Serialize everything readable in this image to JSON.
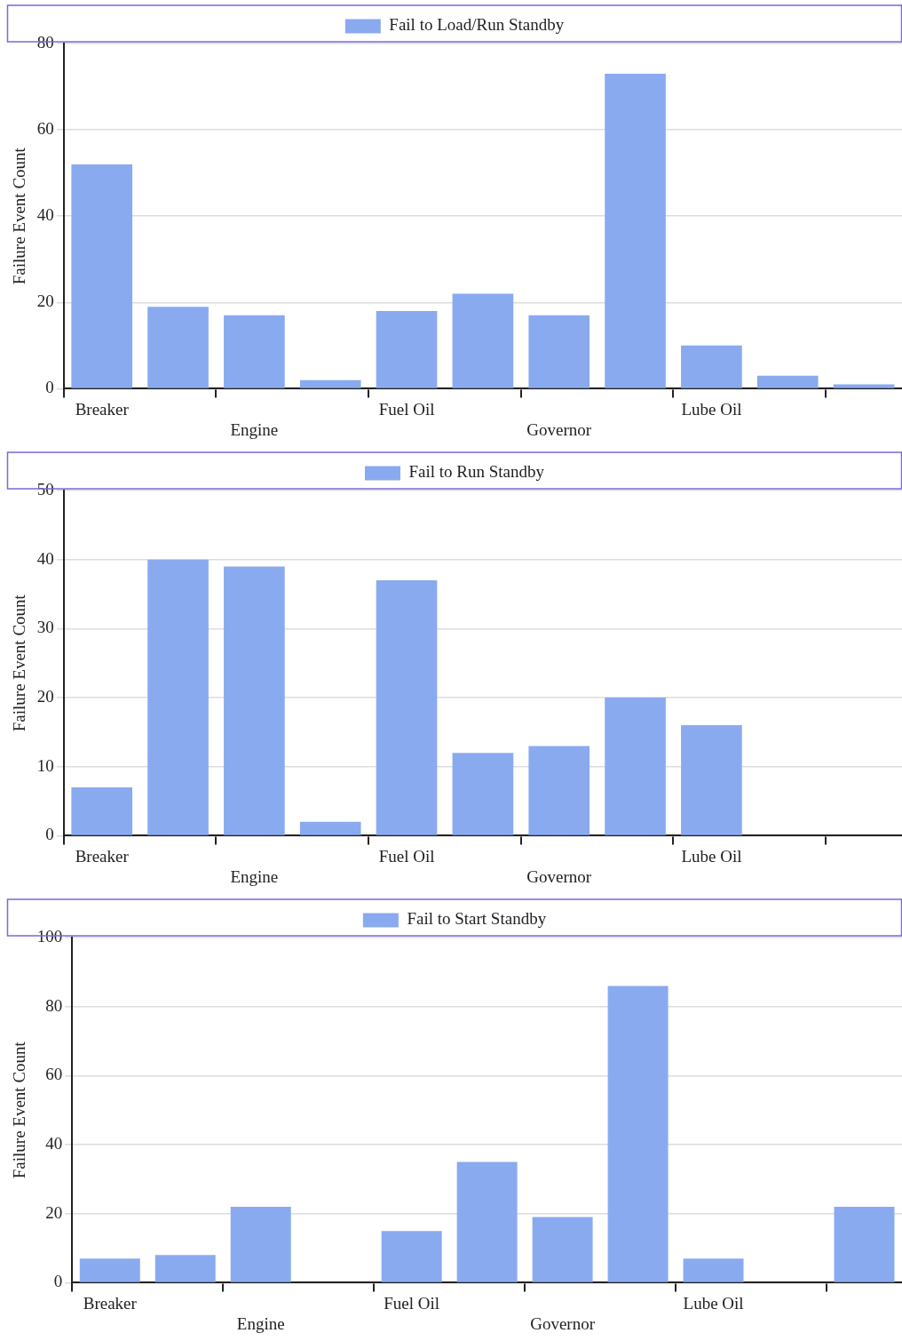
{
  "chart_data": [
    {
      "type": "bar",
      "ylabel": "Failure Event Count",
      "categories": [
        "Breaker",
        null,
        "Engine",
        null,
        "Fuel Oil",
        null,
        "Governor",
        null,
        "Lube Oil",
        null,
        null
      ],
      "series": [
        {
          "name": "Fail to Load/Run Standby",
          "color": "#8aaaf0",
          "values": [
            52,
            19,
            17,
            2,
            18,
            22,
            17,
            73,
            10,
            3,
            1
          ]
        }
      ],
      "ylim": [
        0,
        80
      ],
      "yticks": [
        0,
        20,
        40,
        60,
        80
      ],
      "grid": "y",
      "legend": "top"
    },
    {
      "type": "bar",
      "ylabel": "Failure Event Count",
      "categories": [
        "Breaker",
        null,
        "Engine",
        null,
        "Fuel Oil",
        null,
        "Governor",
        null,
        "Lube Oil",
        null,
        null
      ],
      "series": [
        {
          "name": "Fail to Run Standby",
          "color": "#8aaaf0",
          "values": [
            7,
            40,
            39,
            2,
            37,
            12,
            13,
            20,
            16,
            null,
            null
          ]
        }
      ],
      "ylim": [
        0,
        50
      ],
      "yticks": [
        0,
        10,
        20,
        30,
        40,
        50
      ],
      "grid": "y",
      "legend": "top"
    },
    {
      "type": "bar",
      "ylabel": "Failure Event Count",
      "categories": [
        "Breaker",
        null,
        "Engine",
        null,
        "Fuel Oil",
        null,
        "Governor",
        null,
        "Lube Oil",
        null,
        null
      ],
      "series": [
        {
          "name": "Fail to Start Standby",
          "color": "#8aaaf0",
          "values": [
            7,
            8,
            22,
            null,
            15,
            35,
            19,
            86,
            7,
            null,
            22
          ]
        }
      ],
      "ylim": [
        0,
        100
      ],
      "yticks": [
        0,
        20,
        40,
        60,
        80,
        100
      ],
      "grid": "y",
      "legend": "top"
    }
  ]
}
